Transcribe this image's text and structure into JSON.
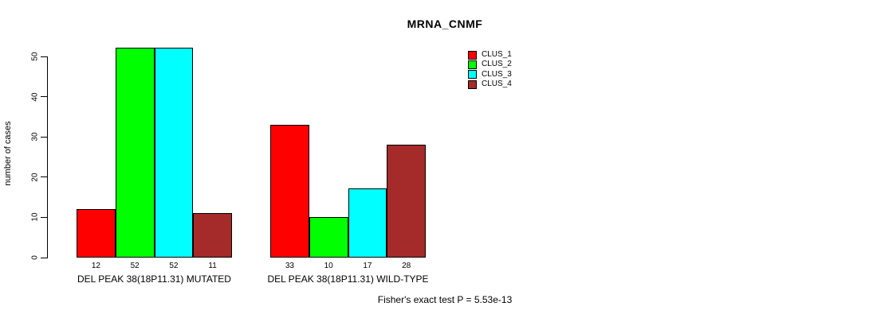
{
  "chart_data": {
    "type": "bar",
    "title": "MRNA_CNMF",
    "ylabel": "number of cases",
    "xlabel": "",
    "ylim": [
      0,
      52
    ],
    "yticks": [
      0,
      10,
      20,
      30,
      40,
      50
    ],
    "grid": false,
    "background": "#ffffff",
    "axis_color": "#000000",
    "categories": [
      "DEL PEAK 38(18P11.31) MUTATED",
      "DEL PEAK 38(18P11.31) WILD-TYPE"
    ],
    "series": [
      {
        "name": "CLUS_1",
        "color": "#ff0000",
        "values": [
          12,
          33
        ]
      },
      {
        "name": "CLUS_2",
        "color": "#00ff00",
        "values": [
          52,
          10
        ]
      },
      {
        "name": "CLUS_3",
        "color": "#00ffff",
        "values": [
          52,
          17
        ]
      },
      {
        "name": "CLUS_4",
        "color": "#a52a2a",
        "values": [
          11,
          28
        ]
      }
    ],
    "bar_value_labels": [
      [
        12,
        52,
        52,
        11
      ],
      [
        33,
        10,
        17,
        28
      ]
    ],
    "legend": {
      "position": "right",
      "entries": [
        "CLUS_1",
        "CLUS_2",
        "CLUS_3",
        "CLUS_4"
      ]
    },
    "annotation": "Fisher's exact test P = 5.53e-13"
  }
}
